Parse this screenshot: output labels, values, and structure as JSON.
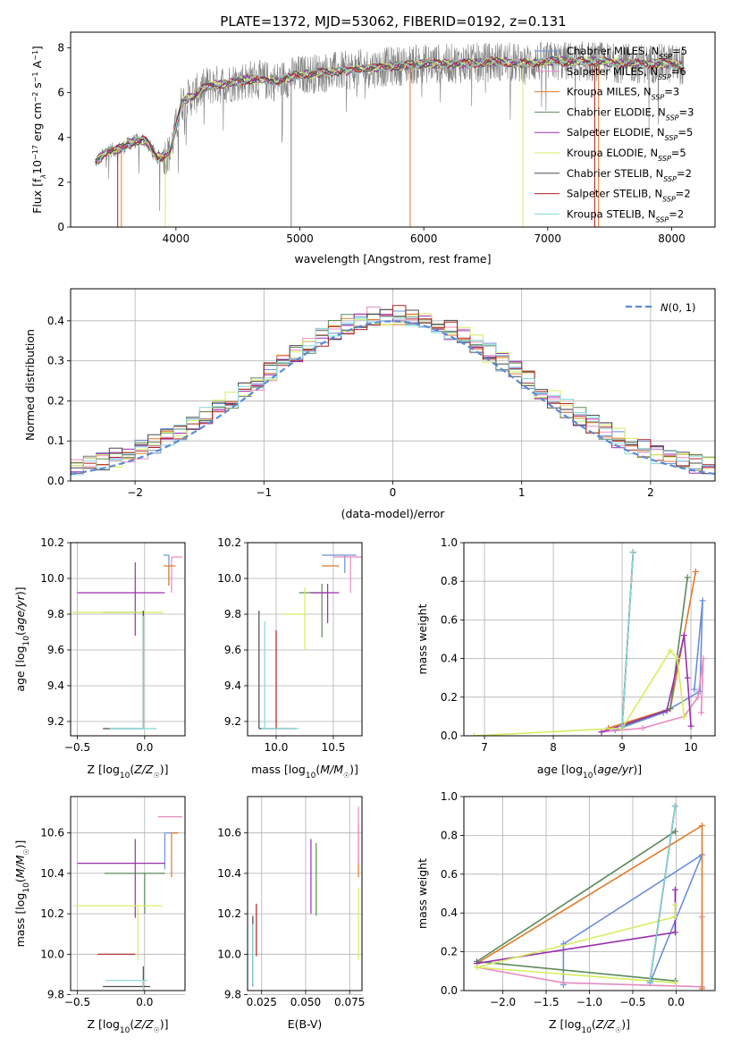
{
  "figure_title": "PLATE=1372, MJD=53062, FIBERID=0192, z=0.131",
  "models": [
    {
      "name": "Chabrier MILES",
      "nssp": "5",
      "color": "#6a8fd8"
    },
    {
      "name": "Salpeter MILES",
      "nssp": "6",
      "color": "#e88ac0"
    },
    {
      "name": "Kroupa MILES",
      "nssp": "3",
      "color": "#e07b28"
    },
    {
      "name": "Chabrier ELODIE",
      "nssp": "3",
      "color": "#5c8a5c"
    },
    {
      "name": "Salpeter ELODIE",
      "nssp": "5",
      "color": "#9b2fae"
    },
    {
      "name": "Kroupa ELODIE",
      "nssp": "5",
      "color": "#d4ee5e"
    },
    {
      "name": "Chabrier STELIB",
      "nssp": "2",
      "color": "#4a4a4a"
    },
    {
      "name": "Salpeter STELIB",
      "nssp": "2",
      "color": "#b22222"
    },
    {
      "name": "Kroupa STELIB",
      "nssp": "2",
      "color": "#80d8dc"
    }
  ],
  "chart_data": [
    {
      "id": "spectrum",
      "type": "line",
      "xlabel": "wavelength [Angstrom, rest frame]",
      "ylabel_parts": [
        "Flux [f",
        "λ",
        "10",
        "−17",
        " erg cm",
        "−2",
        " s",
        "−1",
        " A",
        "−1",
        "]"
      ],
      "xlim": [
        3150,
        8350
      ],
      "ylim": [
        0,
        8.7
      ],
      "xticks": [
        4000,
        5000,
        6000,
        7000,
        8000
      ],
      "yticks": [
        0,
        2,
        4,
        6,
        8
      ],
      "grid": false,
      "legend_position": "right",
      "continuum": {
        "x": [
          3350,
          3450,
          3550,
          3650,
          3750,
          3850,
          3950,
          4050,
          4150,
          4250,
          4400,
          4600,
          4800,
          5000,
          5200,
          5400,
          5600,
          5800,
          6000,
          6200,
          6400,
          6600,
          6800,
          7000,
          7200,
          7400,
          7600,
          7800,
          8000,
          8100
        ],
        "y": [
          2.9,
          3.4,
          3.5,
          3.8,
          3.9,
          3.1,
          3.3,
          5.6,
          5.9,
          6.3,
          6.4,
          6.6,
          6.5,
          6.8,
          6.9,
          7.0,
          7.1,
          7.2,
          7.3,
          7.3,
          7.3,
          7.4,
          7.3,
          7.4,
          7.4,
          7.4,
          7.3,
          7.3,
          7.3,
          7.2
        ]
      }
    },
    {
      "id": "residuals",
      "type": "histogram",
      "xlabel": "(data-model)/error",
      "ylabel": "Normed distribution",
      "xlim": [
        -2.5,
        2.5
      ],
      "ylim": [
        0,
        0.48
      ],
      "xticks": [
        -2,
        -1,
        0,
        1,
        2
      ],
      "yticks": [
        0.0,
        0.1,
        0.2,
        0.3,
        0.4
      ],
      "grid": true,
      "legend_position": "top-right",
      "reference_curve": "N(0,1)",
      "bin_width": 0.1
    },
    {
      "id": "age-vs-Z",
      "type": "scatter",
      "xlabel": "Z [log10(Z/Z☉)]",
      "ylabel": "age [log10(age/yr)]",
      "xlim": [
        -0.55,
        0.3
      ],
      "ylim": [
        9.12,
        10.2
      ],
      "xticks": [
        -0.5,
        0.0
      ],
      "yticks": [
        9.2,
        9.4,
        9.6,
        9.8,
        10.0,
        10.2
      ],
      "grid": true,
      "points": [
        {
          "model": 0,
          "x": 0.18,
          "y": 10.13,
          "xerr": [
            0.04,
            0.0
          ],
          "yerr": [
            0.17,
            0.0
          ]
        },
        {
          "model": 1,
          "x": 0.2,
          "y": 10.12,
          "xerr": [
            0.0,
            0.08
          ],
          "yerr": [
            0.2,
            0.0
          ]
        },
        {
          "model": 2,
          "x": 0.18,
          "y": 10.07,
          "xerr": [
            0.04,
            0.05
          ],
          "yerr": [
            0.11,
            0.0
          ]
        },
        {
          "model": 3,
          "x": -0.01,
          "y": 9.81,
          "xerr": [
            0.3,
            0.0
          ],
          "yerr": [
            0.14,
            0.0
          ]
        },
        {
          "model": 4,
          "x": -0.07,
          "y": 9.92,
          "xerr": [
            0.43,
            0.22
          ],
          "yerr": [
            0.24,
            0.17
          ]
        },
        {
          "model": 5,
          "x": -0.01,
          "y": 9.81,
          "xerr": [
            0.53,
            0.15
          ],
          "yerr": [
            0.26,
            0.0
          ]
        },
        {
          "model": 6,
          "x": -0.01,
          "y": 9.16,
          "xerr": [
            0.3,
            0.0
          ],
          "yerr": [
            0.0,
            0.66
          ]
        },
        {
          "model": 7,
          "x": -0.01,
          "y": 9.16,
          "xerr": [
            0.0,
            0.0
          ],
          "yerr": [
            0.0,
            0.0
          ]
        },
        {
          "model": 8,
          "x": -0.01,
          "y": 9.16,
          "xerr": [
            0.25,
            0.1
          ],
          "yerr": [
            0.0,
            0.63
          ]
        }
      ]
    },
    {
      "id": "age-vs-mass",
      "type": "scatter",
      "xlabel": "mass [log10(M/M☉)]",
      "ylabel": "",
      "xlim": [
        9.75,
        10.75
      ],
      "ylim": [
        9.12,
        10.2
      ],
      "xticks": [
        10.0,
        10.5
      ],
      "yticks": [
        9.2,
        9.4,
        9.6,
        9.8,
        10.0,
        10.2
      ],
      "grid": true,
      "points": [
        {
          "model": 0,
          "x": 10.6,
          "y": 10.13,
          "xerr": [
            0.2,
            0.1
          ],
          "yerr": [
            0.1,
            0.0
          ]
        },
        {
          "model": 1,
          "x": 10.65,
          "y": 10.12,
          "xerr": [
            0.15,
            0.1
          ],
          "yerr": [
            0.2,
            0.0
          ]
        },
        {
          "model": 2,
          "x": 10.55,
          "y": 10.07,
          "xerr": [
            0.15,
            0.0
          ],
          "yerr": [
            0.0,
            0.0
          ]
        },
        {
          "model": 3,
          "x": 10.4,
          "y": 9.92,
          "xerr": [
            0.2,
            0.05
          ],
          "yerr": [
            0.25,
            0.05
          ]
        },
        {
          "model": 4,
          "x": 10.45,
          "y": 9.92,
          "xerr": [
            0.15,
            0.1
          ],
          "yerr": [
            0.17,
            0.05
          ]
        },
        {
          "model": 5,
          "x": 10.25,
          "y": 9.8,
          "xerr": [
            0.2,
            0.0
          ],
          "yerr": [
            0.2,
            0.15
          ]
        },
        {
          "model": 6,
          "x": 9.85,
          "y": 9.16,
          "xerr": [
            0.0,
            0.15
          ],
          "yerr": [
            0.0,
            0.66
          ]
        },
        {
          "model": 7,
          "x": 10.0,
          "y": 9.16,
          "xerr": [
            0.0,
            0.17
          ],
          "yerr": [
            0.0,
            0.55
          ]
        },
        {
          "model": 8,
          "x": 9.9,
          "y": 9.16,
          "xerr": [
            0.03,
            0.3
          ],
          "yerr": [
            0.0,
            0.6
          ]
        }
      ]
    },
    {
      "id": "weight-vs-age",
      "type": "line",
      "xlabel": "age [log10(age/yr)]",
      "ylabel": "mass weight",
      "xlim": [
        6.7,
        10.35
      ],
      "ylim": [
        0,
        1.0
      ],
      "xticks": [
        7,
        8,
        9,
        10
      ],
      "yticks": [
        0.0,
        0.2,
        0.4,
        0.6,
        0.8,
        1.0
      ],
      "grid": true,
      "series": [
        {
          "model": 0,
          "x": [
            8.9,
            9.6,
            10.13,
            10.17,
            10.05
          ],
          "y": [
            0.03,
            0.12,
            0.23,
            0.7,
            0.24
          ]
        },
        {
          "model": 1,
          "x": [
            8.7,
            9.3,
            9.9,
            10.1,
            10.18,
            10.15
          ],
          "y": [
            0.02,
            0.04,
            0.1,
            0.2,
            0.4,
            0.12
          ]
        },
        {
          "model": 2,
          "x": [
            8.8,
            9.7,
            10.07
          ],
          "y": [
            0.04,
            0.14,
            0.85
          ]
        },
        {
          "model": 3,
          "x": [
            9.0,
            9.7,
            9.95
          ],
          "y": [
            0.05,
            0.14,
            0.82
          ]
        },
        {
          "model": 4,
          "x": [
            8.7,
            9.65,
            9.9,
            9.95,
            10.0
          ],
          "y": [
            0.02,
            0.13,
            0.52,
            0.3,
            0.05
          ]
        },
        {
          "model": 5,
          "x": [
            6.85,
            9.0,
            9.7,
            9.8,
            9.9
          ],
          "y": [
            0.0,
            0.04,
            0.44,
            0.4,
            0.1
          ]
        },
        {
          "model": 6,
          "x": [
            9.0,
            9.16
          ],
          "y": [
            0.05,
            0.95
          ]
        },
        {
          "model": 7,
          "x": [
            9.0,
            9.16
          ],
          "y": [
            0.05,
            0.95
          ]
        },
        {
          "model": 8,
          "x": [
            9.0,
            9.16
          ],
          "y": [
            0.05,
            0.95
          ]
        }
      ]
    },
    {
      "id": "mass-vs-Z",
      "type": "scatter",
      "xlabel": "Z [log10(Z/Z☉)]",
      "ylabel": "mass [log10(M/M☉)]",
      "xlim": [
        -0.55,
        0.3
      ],
      "ylim": [
        9.82,
        10.78
      ],
      "xticks": [
        -0.5,
        0.0
      ],
      "yticks": [
        9.8,
        10.0,
        10.2,
        10.4,
        10.6
      ],
      "grid": true,
      "points": [
        {
          "model": 0,
          "x": 0.15,
          "y": 10.6,
          "xerr": [
            0.0,
            0.1
          ],
          "yerr": [
            0.18,
            0.0
          ]
        },
        {
          "model": 1,
          "x": 0.18,
          "y": 10.68,
          "xerr": [
            0.08,
            0.1
          ],
          "yerr": [
            0.0,
            0.0
          ]
        },
        {
          "model": 2,
          "x": 0.2,
          "y": 10.6,
          "xerr": [
            0.0,
            0.05
          ],
          "yerr": [
            0.22,
            0.0
          ]
        },
        {
          "model": 3,
          "x": 0.0,
          "y": 10.4,
          "xerr": [
            0.3,
            0.15
          ],
          "yerr": [
            0.2,
            0.0
          ]
        },
        {
          "model": 4,
          "x": -0.07,
          "y": 10.45,
          "xerr": [
            0.43,
            0.22
          ],
          "yerr": [
            0.27,
            0.12
          ]
        },
        {
          "model": 5,
          "x": -0.05,
          "y": 10.24,
          "xerr": [
            0.48,
            0.18
          ],
          "yerr": [
            0.27,
            0.0
          ]
        },
        {
          "model": 6,
          "x": -0.01,
          "y": 9.84,
          "xerr": [
            0.3,
            0.05
          ],
          "yerr": [
            0.0,
            0.1
          ]
        },
        {
          "model": 7,
          "x": -0.07,
          "y": 10.0,
          "xerr": [
            0.28,
            0.0
          ],
          "yerr": [
            0.0,
            0.0
          ]
        },
        {
          "model": 8,
          "x": -0.01,
          "y": 9.87,
          "xerr": [
            0.28,
            0.03
          ],
          "yerr": [
            0.07,
            0.0
          ]
        }
      ]
    },
    {
      "id": "mass-vs-ebv",
      "type": "scatter",
      "xlabel": "E(B-V)",
      "ylabel": "",
      "xlim": [
        0.017,
        0.082
      ],
      "ylim": [
        9.82,
        10.78
      ],
      "xticks": [
        0.025,
        0.05,
        0.075
      ],
      "yticks": [
        9.8,
        10.0,
        10.2,
        10.4,
        10.6
      ],
      "grid": true,
      "points": [
        {
          "model": 0,
          "x": 0.02,
          "y": 10.0,
          "xerr": [
            0.0,
            0.0
          ],
          "yerr": [
            0.16,
            0.17
          ]
        },
        {
          "model": 2,
          "x": 0.08,
          "y": 10.5,
          "xerr": [
            0.0,
            0.0
          ],
          "yerr": [
            0.12,
            0.14
          ]
        },
        {
          "model": 3,
          "x": 0.056,
          "y": 10.37,
          "xerr": [
            0.0,
            0.0
          ],
          "yerr": [
            0.18,
            0.18
          ]
        },
        {
          "model": 4,
          "x": 0.053,
          "y": 10.4,
          "xerr": [
            0.0,
            0.0
          ],
          "yerr": [
            0.2,
            0.17
          ]
        },
        {
          "model": 5,
          "x": 0.08,
          "y": 10.15,
          "xerr": [
            0.0,
            0.0
          ],
          "yerr": [
            0.18,
            0.18
          ]
        },
        {
          "model": 1,
          "x": 0.08,
          "y": 10.55,
          "xerr": [
            0.0,
            0.0
          ],
          "yerr": [
            0.1,
            0.18
          ]
        },
        {
          "model": 6,
          "x": 0.02,
          "y": 10.03,
          "xerr": [
            0.0,
            0.0
          ],
          "yerr": [
            0.18,
            0.16
          ]
        },
        {
          "model": 7,
          "x": 0.022,
          "y": 10.12,
          "xerr": [
            0.0,
            0.0
          ],
          "yerr": [
            0.13,
            0.13
          ]
        },
        {
          "model": 8,
          "x": 0.02,
          "y": 10.0,
          "xerr": [
            0.0,
            0.0
          ],
          "yerr": [
            0.15,
            0.15
          ]
        }
      ]
    },
    {
      "id": "weight-vs-Z",
      "type": "line",
      "xlabel": "Z [log10(Z/Z☉)]",
      "ylabel": "mass weight",
      "xlim": [
        -2.45,
        0.45
      ],
      "ylim": [
        0,
        1.0
      ],
      "xticks": [
        -2.0,
        -1.5,
        -1.0,
        -0.5,
        0.0
      ],
      "yticks": [
        0.0,
        0.2,
        0.4,
        0.6,
        0.8,
        1.0
      ],
      "grid": true,
      "series": [
        {
          "model": 0,
          "x": [
            -0.3,
            0.3,
            -1.3,
            -1.3
          ],
          "y": [
            0.04,
            0.7,
            0.24,
            0.03
          ]
        },
        {
          "model": 1,
          "x": [
            0.3,
            0.3,
            0.3,
            -1.3,
            -2.3
          ],
          "y": [
            0.38,
            0.02,
            0.02,
            0.04,
            0.12
          ]
        },
        {
          "model": 2,
          "x": [
            0.3,
            0.3,
            -2.3
          ],
          "y": [
            0.01,
            0.85,
            0.14
          ]
        },
        {
          "model": 3,
          "x": [
            -0.01,
            -2.3,
            -0.01
          ],
          "y": [
            0.82,
            0.15,
            0.05
          ]
        },
        {
          "model": 4,
          "x": [
            -0.01,
            -0.01,
            -2.3
          ],
          "y": [
            0.52,
            0.3,
            0.14
          ]
        },
        {
          "model": 5,
          "x": [
            -0.01,
            -0.01,
            -2.3,
            -0.01
          ],
          "y": [
            0.44,
            0.38,
            0.12,
            0.04
          ]
        },
        {
          "model": 6,
          "x": [
            -0.01,
            -0.3
          ],
          "y": [
            0.95,
            0.05
          ]
        },
        {
          "model": 7,
          "x": [
            -0.01,
            -0.3
          ],
          "y": [
            0.95,
            0.05
          ]
        },
        {
          "model": 8,
          "x": [
            -0.01,
            -0.3
          ],
          "y": [
            0.95,
            0.05
          ]
        }
      ]
    }
  ]
}
